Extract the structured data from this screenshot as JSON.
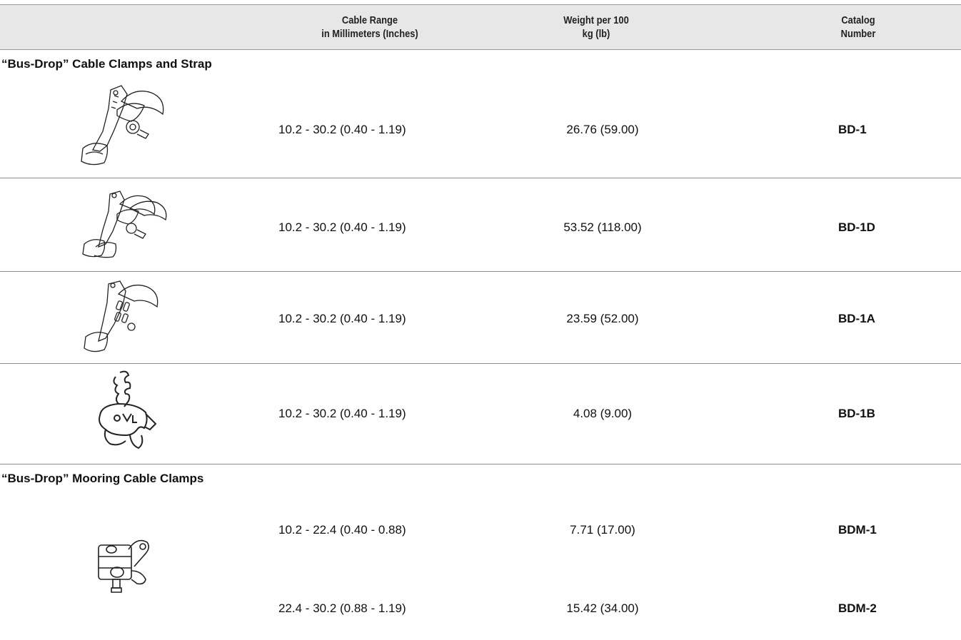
{
  "header": {
    "col1_line1": "Cable Range",
    "col1_line2": "in Millimeters (Inches)",
    "col2_line1": "Weight per 100",
    "col2_line2": "kg (lb)",
    "col3_line1": "Catalog",
    "col3_line2": "Number"
  },
  "sections": [
    {
      "title": "“Bus-Drop” Cable Clamps and Strap",
      "rows": [
        {
          "range": "10.2 - 30.2 (0.40 - 1.19)",
          "weight": "26.76 (59.00)",
          "catalog": "BD-1",
          "image_icon": "bd-1-clamp-icon"
        },
        {
          "range": "10.2 - 30.2 (0.40 - 1.19)",
          "weight": "53.52 (118.00)",
          "catalog": "BD-1D",
          "image_icon": "bd-1d-double-clamp-icon"
        },
        {
          "range": "10.2 - 30.2 (0.40 - 1.19)",
          "weight": "23.59 (52.00)",
          "catalog": "BD-1A",
          "image_icon": "bd-1a-clamp-icon"
        },
        {
          "range": "10.2 - 30.2 (0.40 - 1.19)",
          "weight": "4.08 (9.00)",
          "catalog": "BD-1B",
          "image_icon": "bd-1b-strap-icon"
        }
      ]
    },
    {
      "title": "“Bus-Drop” Mooring Cable Clamps",
      "rows": [
        {
          "range": "10.2 - 22.4 (0.40 - 0.88)",
          "weight": "7.71 (17.00)",
          "catalog": "BDM-1",
          "image_icon": "bdm-mooring-clamp-icon"
        },
        {
          "range": "22.4 - 30.2 (0.88 - 1.19)",
          "weight": "15.42 (34.00)",
          "catalog": "BDM-2"
        }
      ]
    }
  ]
}
